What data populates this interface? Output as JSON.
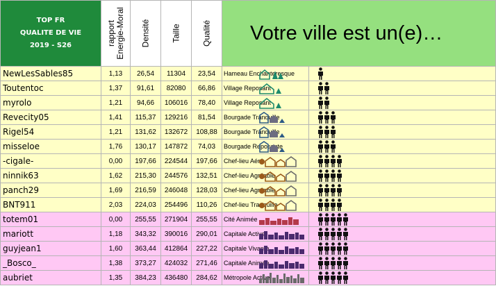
{
  "header": {
    "title_lines": [
      "TOP FR",
      "QUALITE DE VIE",
      "2019 - S26"
    ],
    "col_rapport": "rapport\nEnergie-Moral",
    "col_rapport_1": "rapport",
    "col_rapport_2": "Energie-Moral",
    "col_densite": "Densité",
    "col_taille": "Taille",
    "col_qualite": "Qualité",
    "banner": "Votre ville est un(e)…"
  },
  "colors": {
    "title_bg": "#1f8a3b",
    "banner_bg": "#95e07f",
    "row_yellow": "#ffffc6",
    "row_pink": "#ffc8f4",
    "house_green": "#1e8a6c",
    "city_purple": "#4a2a6e",
    "metro_gray": "#6a6a6a"
  },
  "rows": [
    {
      "name": "NewLesSables85",
      "rapport": "1,13",
      "densite": "26,54",
      "taille": "11304",
      "qualite": "23,54",
      "label": "Hameau Enchanteresque",
      "people": 1,
      "icon": "hamlet-icon",
      "color": "yellow"
    },
    {
      "name": "Toutentoc",
      "rapport": "1,37",
      "densite": "91,61",
      "taille": "82080",
      "qualite": "66,86",
      "label": "Village Reposant",
      "people": 2,
      "icon": "village-icon",
      "color": "yellow"
    },
    {
      "name": "myrolo",
      "rapport": "1,21",
      "densite": "94,66",
      "taille": "106016",
      "qualite": "78,40",
      "label": "Village Reposant",
      "people": 2,
      "icon": "village-icon",
      "color": "yellow"
    },
    {
      "name": "Revecity05",
      "rapport": "1,41",
      "densite": "115,37",
      "taille": "129216",
      "qualite": "81,54",
      "label": "Bourgade Tranquille",
      "people": 3,
      "icon": "town-icon",
      "color": "yellow"
    },
    {
      "name": "Rigel54",
      "rapport": "1,21",
      "densite": "131,62",
      "taille": "132672",
      "qualite": "108,88",
      "label": "Bourgade Tranquille",
      "people": 3,
      "icon": "town-icon",
      "color": "yellow"
    },
    {
      "name": "misseloe",
      "rapport": "1,76",
      "densite": "130,17",
      "taille": "147872",
      "qualite": "74,03",
      "label": "Bourgade Reposante",
      "people": 3,
      "icon": "town-icon",
      "color": "yellow"
    },
    {
      "name": "-cigale-",
      "rapport": "0,00",
      "densite": "197,66",
      "taille": "224544",
      "qualite": "197,66",
      "label": "Chef-lieu Aéré",
      "people": 4,
      "icon": "county-town-icon",
      "color": "yellow"
    },
    {
      "name": "ninnik63",
      "rapport": "1,62",
      "densite": "215,30",
      "taille": "244576",
      "qualite": "132,51",
      "label": "Chef-lieu Agréable",
      "people": 4,
      "icon": "county-town-icon",
      "color": "yellow"
    },
    {
      "name": "panch29",
      "rapport": "1,69",
      "densite": "216,59",
      "taille": "246048",
      "qualite": "128,03",
      "label": "Chef-lieu Agréable",
      "people": 4,
      "icon": "county-town-icon",
      "color": "yellow"
    },
    {
      "name": "BNT911",
      "rapport": "2,03",
      "densite": "224,03",
      "taille": "254496",
      "qualite": "110,26",
      "label": "Chef-lieu Tranquille",
      "people": 4,
      "icon": "county-town-icon",
      "color": "yellow"
    },
    {
      "name": "totem01",
      "rapport": "0,00",
      "densite": "255,55",
      "taille": "271904",
      "qualite": "255,55",
      "label": "Cité Animée",
      "people": 5,
      "icon": "city-icon",
      "color": "pink"
    },
    {
      "name": "mariott",
      "rapport": "1,18",
      "densite": "343,32",
      "taille": "390016",
      "qualite": "290,01",
      "label": "Capitale Active",
      "people": 5,
      "icon": "capital-icon",
      "color": "pink"
    },
    {
      "name": "guyjean1",
      "rapport": "1,60",
      "densite": "363,44",
      "taille": "412864",
      "qualite": "227,22",
      "label": "Capitale Vivante",
      "people": 5,
      "icon": "capital-icon",
      "color": "pink"
    },
    {
      "name": "_Bosco_",
      "rapport": "1,38",
      "densite": "373,27",
      "taille": "424032",
      "qualite": "271,46",
      "label": "Capitale Animée",
      "people": 5,
      "icon": "capital-icon",
      "color": "pink"
    },
    {
      "name": "aubriet",
      "rapport": "1,35",
      "densite": "384,23",
      "taille": "436480",
      "qualite": "284,62",
      "label": "Métropole Active",
      "people": 5,
      "icon": "metropolis-icon",
      "color": "pink"
    }
  ]
}
